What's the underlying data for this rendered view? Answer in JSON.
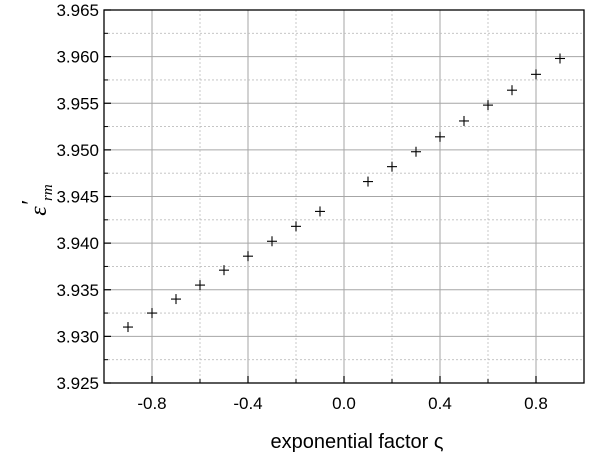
{
  "chart_data": {
    "type": "scatter",
    "xlabel": "exponential factor ς",
    "ylabel": "ε'rm",
    "ylabel_parts": {
      "main": "ε",
      "prime": "′",
      "sub": "rm"
    },
    "xlim": [
      -1.0,
      1.0
    ],
    "ylim": [
      3.925,
      3.965
    ],
    "x_ticks": [
      -0.8,
      -0.4,
      0.0,
      0.4,
      0.8
    ],
    "x_tick_labels": [
      "-0.8",
      "-0.4",
      "0.0",
      "0.4",
      "0.8"
    ],
    "x_minor_ticks": [
      -1.0,
      -0.6,
      -0.2,
      0.2,
      0.6,
      1.0
    ],
    "y_ticks": [
      3.925,
      3.93,
      3.935,
      3.94,
      3.945,
      3.95,
      3.955,
      3.96,
      3.965
    ],
    "y_tick_labels": [
      "3.925",
      "3.930",
      "3.935",
      "3.940",
      "3.945",
      "3.950",
      "3.955",
      "3.960",
      "3.965"
    ],
    "grid": true,
    "marker": "+",
    "series": [
      {
        "x": [
          -0.9,
          -0.8,
          -0.7,
          -0.6,
          -0.5,
          -0.4,
          -0.3,
          -0.2,
          -0.1,
          0.1,
          0.2,
          0.3,
          0.4,
          0.5,
          0.6,
          0.7,
          0.8,
          0.9
        ],
        "y": [
          3.931,
          3.9325,
          3.934,
          3.9355,
          3.9371,
          3.9386,
          3.9402,
          3.9418,
          3.9434,
          3.9466,
          3.9482,
          3.9498,
          3.9514,
          3.9531,
          3.9548,
          3.9564,
          3.9581,
          3.9598
        ]
      }
    ]
  }
}
